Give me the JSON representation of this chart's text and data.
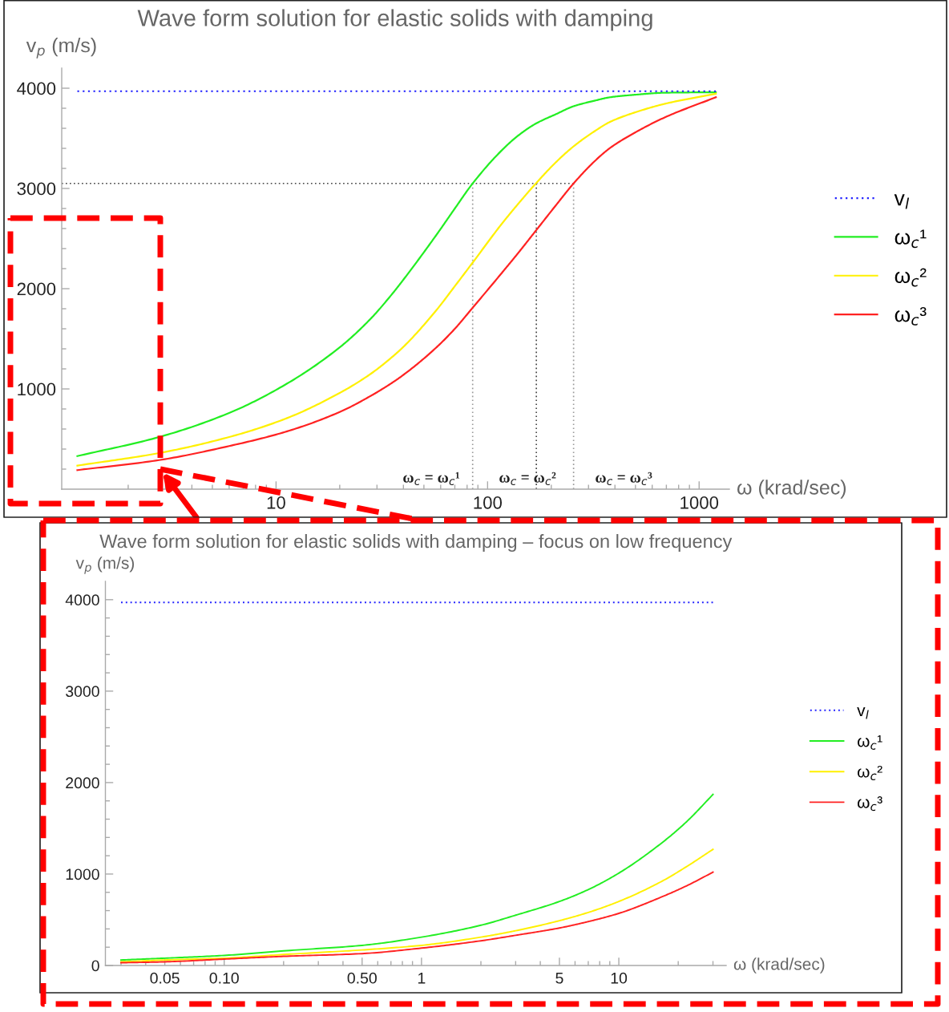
{
  "chart_data": [
    {
      "type": "line",
      "title": "Wave form solution for elastic solids with damping",
      "xlabel": "ω (krad/sec)",
      "ylabel": "v$_{p}$ (m/s)",
      "x": [
        1.15,
        2.8,
        6,
        11,
        20,
        28,
        35,
        40,
        57,
        70,
        85,
        116,
        140,
        170,
        210,
        255,
        320,
        380,
        500,
        690,
        1200
      ],
      "series": [
        {
          "name": "v$_{l}$",
          "color": "#2222ff",
          "line_style": "dotted",
          "x": [
            1.15,
            1200
          ],
          "values": [
            3970,
            3970
          ]
        },
        {
          "name": "ω$_{c}$¹",
          "color": "#22ee22",
          "line_style": "solid",
          "values": [
            330,
            520,
            760,
            1040,
            1415,
            1700,
            1935,
            2090,
            2530,
            2800,
            3050,
            3375,
            3530,
            3650,
            3740,
            3820,
            3875,
            3910,
            3935,
            3955,
            3960
          ]
        },
        {
          "name": "ω$_{c}$²",
          "color": "#fff000",
          "line_style": "solid",
          "values": [
            235,
            360,
            520,
            700,
            960,
            1150,
            1310,
            1420,
            1780,
            2025,
            2260,
            2640,
            2850,
            3055,
            3260,
            3420,
            3570,
            3665,
            3760,
            3845,
            3945
          ]
        },
        {
          "name": "ω$_{c}$³",
          "color": "#ff2222",
          "line_style": "solid",
          "values": [
            190,
            290,
            430,
            570,
            770,
            930,
            1055,
            1140,
            1410,
            1600,
            1810,
            2150,
            2360,
            2585,
            2830,
            3050,
            3270,
            3405,
            3560,
            3710,
            3910
          ]
        }
      ],
      "xlim": [
        0.97,
        1390
      ],
      "ylim": [
        0,
        4200
      ],
      "xticks": [
        {
          "value": 2,
          "label": null
        },
        {
          "value": 3,
          "label": null
        },
        {
          "value": 4,
          "label": null
        },
        {
          "value": 5,
          "label": null
        },
        {
          "value": 6,
          "label": null
        },
        {
          "value": 7,
          "label": null
        },
        {
          "value": 8,
          "label": null
        },
        {
          "value": 9,
          "label": null
        },
        10,
        {
          "value": 20,
          "label": null
        },
        {
          "value": 30,
          "label": null
        },
        {
          "value": 40,
          "label": null
        },
        {
          "value": 50,
          "label": null
        },
        {
          "value": 60,
          "label": null
        },
        {
          "value": 70,
          "label": null
        },
        {
          "value": 80,
          "label": null
        },
        {
          "value": 90,
          "label": null
        },
        100,
        {
          "value": 200,
          "label": null
        },
        {
          "value": 300,
          "label": null
        },
        {
          "value": 400,
          "label": null
        },
        {
          "value": 500,
          "label": null
        },
        {
          "value": 600,
          "label": null
        },
        {
          "value": 700,
          "label": null
        },
        {
          "value": 800,
          "label": null
        },
        {
          "value": 900,
          "label": null
        },
        1000
      ],
      "yticks": [
        {
          "value": 200,
          "label": null
        },
        {
          "value": 400,
          "label": null
        },
        {
          "value": 600,
          "label": null
        },
        {
          "value": 800,
          "label": null
        },
        1000,
        {
          "value": 1200,
          "label": null
        },
        {
          "value": 1400,
          "label": null
        },
        {
          "value": 1600,
          "label": null
        },
        {
          "value": 1800,
          "label": null
        },
        2000,
        {
          "value": 2200,
          "label": null
        },
        {
          "value": 2400,
          "label": null
        },
        {
          "value": 2600,
          "label": null
        },
        {
          "value": 2800,
          "label": null
        },
        3000,
        {
          "value": 3200,
          "label": null
        },
        {
          "value": 3400,
          "label": null
        },
        {
          "value": 3600,
          "label": null
        },
        {
          "value": 3800,
          "label": null
        },
        4000
      ],
      "log": "x",
      "legend": "right",
      "ref_lines": [
        {
          "axis": "y",
          "value": 3050,
          "color": "#444444",
          "line_style": "dotted"
        },
        {
          "axis": "x",
          "value": 85,
          "label": "ω$_{c}$ = ω$_{c}$¹",
          "color": "#999999",
          "line_style": "dotted"
        },
        {
          "axis": "x",
          "value": 170,
          "label": "ω$_{c}$ = ω$_{c}$²",
          "color": "#444444",
          "line_style": "dotted"
        },
        {
          "axis": "x",
          "value": 255,
          "label": "ω$_{c}$ = ω$_{c}$³",
          "color": "#999999",
          "line_style": "dotted"
        }
      ]
    },
    {
      "type": "line",
      "title": "Wave form solution for elastic solids with damping – focus on low frequency",
      "xlabel": "ω (krad/sec)",
      "ylabel": "v$_{p}$ (m/s)",
      "x": [
        0.03,
        0.05,
        0.1,
        0.2,
        0.5,
        1,
        2,
        3,
        5,
        7,
        10,
        16.5,
        22,
        30
      ],
      "series": [
        {
          "name": "v$_{l}$",
          "color": "#2222ff",
          "line_style": "dotted",
          "x": [
            0.03,
            30
          ],
          "values": [
            3970,
            3970
          ]
        },
        {
          "name": "ω$_{c}$¹",
          "color": "#22ee22",
          "line_style": "solid",
          "values": [
            60,
            80,
            110,
            160,
            220,
            310,
            440,
            550,
            700,
            830,
            1010,
            1340,
            1570,
            1870
          ]
        },
        {
          "name": "ω$_{c}$²",
          "color": "#fff000",
          "line_style": "solid",
          "values": [
            40,
            60,
            80,
            120,
            170,
            220,
            310,
            380,
            490,
            580,
            700,
            920,
            1080,
            1270
          ]
        },
        {
          "name": "ω$_{c}$³",
          "color": "#ff2222",
          "line_style": "solid",
          "values": [
            30,
            40,
            70,
            100,
            130,
            190,
            270,
            330,
            410,
            480,
            570,
            750,
            870,
            1020
          ]
        }
      ],
      "xlim": [
        0.025,
        35
      ],
      "ylim": [
        0,
        4200
      ],
      "xticks": [
        {
          "value": 0.03,
          "label": null
        },
        {
          "value": 0.04,
          "label": null
        },
        0.05,
        {
          "value": 0.06,
          "label": null
        },
        {
          "value": 0.07,
          "label": null
        },
        {
          "value": 0.08,
          "label": null
        },
        {
          "value": 0.09,
          "label": null
        },
        {
          "value": 0.1,
          "label": "0.10"
        },
        {
          "value": 0.2,
          "label": null
        },
        {
          "value": 0.3,
          "label": null
        },
        {
          "value": 0.4,
          "label": null
        },
        {
          "value": 0.5,
          "label": "0.50"
        },
        {
          "value": 0.6,
          "label": null
        },
        {
          "value": 0.7,
          "label": null
        },
        {
          "value": 0.8,
          "label": null
        },
        {
          "value": 0.9,
          "label": null
        },
        1,
        {
          "value": 2,
          "label": null
        },
        {
          "value": 3,
          "label": null
        },
        {
          "value": 4,
          "label": null
        },
        5,
        {
          "value": 6,
          "label": null
        },
        {
          "value": 7,
          "label": null
        },
        {
          "value": 8,
          "label": null
        },
        {
          "value": 9,
          "label": null
        },
        10,
        {
          "value": 20,
          "label": null
        },
        {
          "value": 30,
          "label": null
        }
      ],
      "yticks": [
        0,
        {
          "value": 200,
          "label": null
        },
        {
          "value": 400,
          "label": null
        },
        {
          "value": 600,
          "label": null
        },
        {
          "value": 800,
          "label": null
        },
        1000,
        {
          "value": 1200,
          "label": null
        },
        {
          "value": 1400,
          "label": null
        },
        {
          "value": 1600,
          "label": null
        },
        {
          "value": 1800,
          "label": null
        },
        2000,
        {
          "value": 2200,
          "label": null
        },
        {
          "value": 2400,
          "label": null
        },
        {
          "value": 2600,
          "label": null
        },
        {
          "value": 2800,
          "label": null
        },
        3000,
        {
          "value": 3200,
          "label": null
        },
        {
          "value": 3400,
          "label": null
        },
        {
          "value": 3600,
          "label": null
        },
        {
          "value": 3800,
          "label": null
        },
        4000
      ],
      "log": "x",
      "legend": "right"
    }
  ]
}
